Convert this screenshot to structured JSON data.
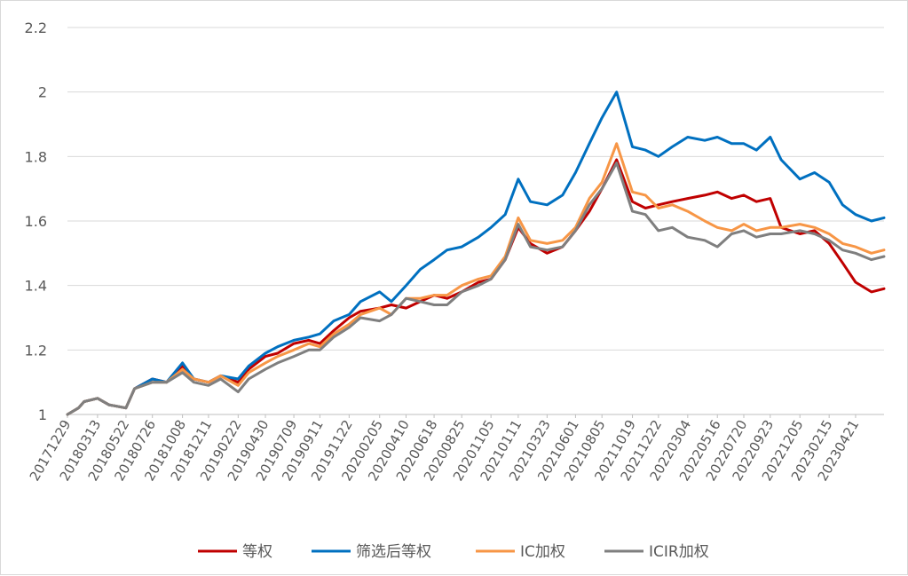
{
  "chart_data": {
    "type": "line",
    "title": "",
    "xlabel": "",
    "ylabel": "",
    "ylim": [
      1,
      2.2
    ],
    "yticks": [
      1,
      1.2,
      1.4,
      1.6,
      1.8,
      2,
      2.2
    ],
    "ytick_labels": [
      "1",
      "1.2",
      "1.4",
      "1.6",
      "1.8",
      "2",
      "2.2"
    ],
    "grid": "horizontal",
    "legend_position": "bottom",
    "x_tick_labels": [
      "20171229",
      "20180313",
      "20180522",
      "20180726",
      "20181008",
      "20181211",
      "20190222",
      "20190430",
      "20190709",
      "20190911",
      "20191122",
      "20200205",
      "20200410",
      "20200618",
      "20200825",
      "20201105",
      "20210111",
      "20210323",
      "20210601",
      "20210805",
      "20211019",
      "20211222",
      "20220304",
      "20220516",
      "20220720",
      "20220923",
      "20221205",
      "20230215",
      "20230421"
    ],
    "x_end_label": "20230630",
    "colors": {
      "等权": "#c00000",
      "筛选后等权": "#0070c0",
      "IC加权": "#f79646",
      "ICIR加权": "#7f7f7f"
    },
    "series": [
      {
        "name": "等权",
        "color": "#c00000",
        "points": [
          [
            "20171229",
            1.0
          ],
          [
            "20180125",
            1.02
          ],
          [
            "20180208",
            1.04
          ],
          [
            "20180313",
            1.05
          ],
          [
            "20180410",
            1.03
          ],
          [
            "20180522",
            1.02
          ],
          [
            "20180612",
            1.08
          ],
          [
            "20180726",
            1.11
          ],
          [
            "20180830",
            1.1
          ],
          [
            "20181008",
            1.15
          ],
          [
            "20181105",
            1.11
          ],
          [
            "20181211",
            1.1
          ],
          [
            "20190110",
            1.12
          ],
          [
            "20190222",
            1.1
          ],
          [
            "20190320",
            1.14
          ],
          [
            "20190430",
            1.18
          ],
          [
            "20190530",
            1.19
          ],
          [
            "20190709",
            1.22
          ],
          [
            "20190815",
            1.23
          ],
          [
            "20190911",
            1.22
          ],
          [
            "20191015",
            1.26
          ],
          [
            "20191122",
            1.3
          ],
          [
            "20191220",
            1.32
          ],
          [
            "20200205",
            1.33
          ],
          [
            "20200305",
            1.34
          ],
          [
            "20200410",
            1.33
          ],
          [
            "20200515",
            1.35
          ],
          [
            "20200618",
            1.37
          ],
          [
            "20200720",
            1.36
          ],
          [
            "20200825",
            1.38
          ],
          [
            "20201005",
            1.41
          ],
          [
            "20201105",
            1.42
          ],
          [
            "20201210",
            1.48
          ],
          [
            "20210111",
            1.58
          ],
          [
            "20210210",
            1.53
          ],
          [
            "20210323",
            1.5
          ],
          [
            "20210430",
            1.52
          ],
          [
            "20210601",
            1.57
          ],
          [
            "20210705",
            1.63
          ],
          [
            "20210805",
            1.7
          ],
          [
            "20210910",
            1.79
          ],
          [
            "20211019",
            1.66
          ],
          [
            "20211120",
            1.64
          ],
          [
            "20211222",
            1.65
          ],
          [
            "20220125",
            1.66
          ],
          [
            "20220304",
            1.67
          ],
          [
            "20220415",
            1.68
          ],
          [
            "20220516",
            1.69
          ],
          [
            "20220620",
            1.67
          ],
          [
            "20220720",
            1.68
          ],
          [
            "20220820",
            1.66
          ],
          [
            "20220923",
            1.67
          ],
          [
            "20221020",
            1.58
          ],
          [
            "20221205",
            1.56
          ],
          [
            "20230110",
            1.57
          ],
          [
            "20230215",
            1.53
          ],
          [
            "20230320",
            1.47
          ],
          [
            "20230421",
            1.41
          ],
          [
            "20230530",
            1.38
          ],
          [
            "20230630",
            1.39
          ]
        ]
      },
      {
        "name": "筛选后等权",
        "color": "#0070c0",
        "points": [
          [
            "20171229",
            1.0
          ],
          [
            "20180125",
            1.02
          ],
          [
            "20180208",
            1.04
          ],
          [
            "20180313",
            1.05
          ],
          [
            "20180410",
            1.03
          ],
          [
            "20180522",
            1.02
          ],
          [
            "20180612",
            1.08
          ],
          [
            "20180726",
            1.11
          ],
          [
            "20180830",
            1.1
          ],
          [
            "20181008",
            1.16
          ],
          [
            "20181105",
            1.11
          ],
          [
            "20181211",
            1.1
          ],
          [
            "20190110",
            1.12
          ],
          [
            "20190222",
            1.11
          ],
          [
            "20190320",
            1.15
          ],
          [
            "20190430",
            1.19
          ],
          [
            "20190530",
            1.21
          ],
          [
            "20190709",
            1.23
          ],
          [
            "20190815",
            1.24
          ],
          [
            "20190911",
            1.25
          ],
          [
            "20191015",
            1.29
          ],
          [
            "20191122",
            1.31
          ],
          [
            "20191220",
            1.35
          ],
          [
            "20200205",
            1.38
          ],
          [
            "20200305",
            1.35
          ],
          [
            "20200410",
            1.4
          ],
          [
            "20200515",
            1.45
          ],
          [
            "20200618",
            1.48
          ],
          [
            "20200720",
            1.51
          ],
          [
            "20200825",
            1.52
          ],
          [
            "20201005",
            1.55
          ],
          [
            "20201105",
            1.58
          ],
          [
            "20201210",
            1.62
          ],
          [
            "20210111",
            1.73
          ],
          [
            "20210210",
            1.66
          ],
          [
            "20210323",
            1.65
          ],
          [
            "20210430",
            1.68
          ],
          [
            "20210601",
            1.75
          ],
          [
            "20210705",
            1.84
          ],
          [
            "20210805",
            1.92
          ],
          [
            "20210910",
            2.0
          ],
          [
            "20211019",
            1.83
          ],
          [
            "20211120",
            1.82
          ],
          [
            "20211222",
            1.8
          ],
          [
            "20220125",
            1.83
          ],
          [
            "20220304",
            1.86
          ],
          [
            "20220415",
            1.85
          ],
          [
            "20220516",
            1.86
          ],
          [
            "20220620",
            1.84
          ],
          [
            "20220720",
            1.84
          ],
          [
            "20220820",
            1.82
          ],
          [
            "20220923",
            1.86
          ],
          [
            "20221020",
            1.79
          ],
          [
            "20221205",
            1.73
          ],
          [
            "20230110",
            1.75
          ],
          [
            "20230215",
            1.72
          ],
          [
            "20230320",
            1.65
          ],
          [
            "20230421",
            1.62
          ],
          [
            "20230530",
            1.6
          ],
          [
            "20230630",
            1.61
          ]
        ]
      },
      {
        "name": "IC加权",
        "color": "#f79646",
        "points": [
          [
            "20171229",
            1.0
          ],
          [
            "20180125",
            1.02
          ],
          [
            "20180208",
            1.04
          ],
          [
            "20180313",
            1.05
          ],
          [
            "20180410",
            1.03
          ],
          [
            "20180522",
            1.02
          ],
          [
            "20180612",
            1.08
          ],
          [
            "20180726",
            1.1
          ],
          [
            "20180830",
            1.1
          ],
          [
            "20181008",
            1.14
          ],
          [
            "20181105",
            1.11
          ],
          [
            "20181211",
            1.1
          ],
          [
            "20190110",
            1.12
          ],
          [
            "20190222",
            1.09
          ],
          [
            "20190320",
            1.13
          ],
          [
            "20190430",
            1.16
          ],
          [
            "20190530",
            1.18
          ],
          [
            "20190709",
            1.2
          ],
          [
            "20190815",
            1.22
          ],
          [
            "20190911",
            1.21
          ],
          [
            "20191015",
            1.25
          ],
          [
            "20191122",
            1.28
          ],
          [
            "20191220",
            1.31
          ],
          [
            "20200205",
            1.33
          ],
          [
            "20200305",
            1.31
          ],
          [
            "20200410",
            1.36
          ],
          [
            "20200515",
            1.36
          ],
          [
            "20200618",
            1.37
          ],
          [
            "20200720",
            1.37
          ],
          [
            "20200825",
            1.4
          ],
          [
            "20201005",
            1.42
          ],
          [
            "20201105",
            1.43
          ],
          [
            "20201210",
            1.49
          ],
          [
            "20210111",
            1.61
          ],
          [
            "20210210",
            1.54
          ],
          [
            "20210323",
            1.53
          ],
          [
            "20210430",
            1.54
          ],
          [
            "20210601",
            1.58
          ],
          [
            "20210705",
            1.67
          ],
          [
            "20210805",
            1.72
          ],
          [
            "20210910",
            1.84
          ],
          [
            "20211019",
            1.69
          ],
          [
            "20211120",
            1.68
          ],
          [
            "20211222",
            1.64
          ],
          [
            "20220125",
            1.65
          ],
          [
            "20220304",
            1.63
          ],
          [
            "20220415",
            1.6
          ],
          [
            "20220516",
            1.58
          ],
          [
            "20220620",
            1.57
          ],
          [
            "20220720",
            1.59
          ],
          [
            "20220820",
            1.57
          ],
          [
            "20220923",
            1.58
          ],
          [
            "20221020",
            1.58
          ],
          [
            "20221205",
            1.59
          ],
          [
            "20230110",
            1.58
          ],
          [
            "20230215",
            1.56
          ],
          [
            "20230320",
            1.53
          ],
          [
            "20230421",
            1.52
          ],
          [
            "20230530",
            1.5
          ],
          [
            "20230630",
            1.51
          ]
        ]
      },
      {
        "name": "ICIR加权",
        "color": "#7f7f7f",
        "points": [
          [
            "20171229",
            1.0
          ],
          [
            "20180125",
            1.02
          ],
          [
            "20180208",
            1.04
          ],
          [
            "20180313",
            1.05
          ],
          [
            "20180410",
            1.03
          ],
          [
            "20180522",
            1.02
          ],
          [
            "20180612",
            1.08
          ],
          [
            "20180726",
            1.1
          ],
          [
            "20180830",
            1.1
          ],
          [
            "20181008",
            1.13
          ],
          [
            "20181105",
            1.1
          ],
          [
            "20181211",
            1.09
          ],
          [
            "20190110",
            1.11
          ],
          [
            "20190222",
            1.07
          ],
          [
            "20190320",
            1.11
          ],
          [
            "20190430",
            1.14
          ],
          [
            "20190530",
            1.16
          ],
          [
            "20190709",
            1.18
          ],
          [
            "20190815",
            1.2
          ],
          [
            "20190911",
            1.2
          ],
          [
            "20191015",
            1.24
          ],
          [
            "20191122",
            1.27
          ],
          [
            "20191220",
            1.3
          ],
          [
            "20200205",
            1.29
          ],
          [
            "20200305",
            1.31
          ],
          [
            "20200410",
            1.36
          ],
          [
            "20200515",
            1.35
          ],
          [
            "20200618",
            1.34
          ],
          [
            "20200720",
            1.34
          ],
          [
            "20200825",
            1.38
          ],
          [
            "20201005",
            1.4
          ],
          [
            "20201105",
            1.42
          ],
          [
            "20201210",
            1.48
          ],
          [
            "20210111",
            1.59
          ],
          [
            "20210210",
            1.52
          ],
          [
            "20210323",
            1.51
          ],
          [
            "20210430",
            1.52
          ],
          [
            "20210601",
            1.57
          ],
          [
            "20210705",
            1.65
          ],
          [
            "20210805",
            1.7
          ],
          [
            "20210910",
            1.78
          ],
          [
            "20211019",
            1.63
          ],
          [
            "20211120",
            1.62
          ],
          [
            "20211222",
            1.57
          ],
          [
            "20220125",
            1.58
          ],
          [
            "20220304",
            1.55
          ],
          [
            "20220415",
            1.54
          ],
          [
            "20220516",
            1.52
          ],
          [
            "20220620",
            1.56
          ],
          [
            "20220720",
            1.57
          ],
          [
            "20220820",
            1.55
          ],
          [
            "20220923",
            1.56
          ],
          [
            "20221020",
            1.56
          ],
          [
            "20221205",
            1.57
          ],
          [
            "20230110",
            1.56
          ],
          [
            "20230215",
            1.54
          ],
          [
            "20230320",
            1.51
          ],
          [
            "20230421",
            1.5
          ],
          [
            "20230530",
            1.48
          ],
          [
            "20230630",
            1.49
          ]
        ]
      }
    ]
  }
}
